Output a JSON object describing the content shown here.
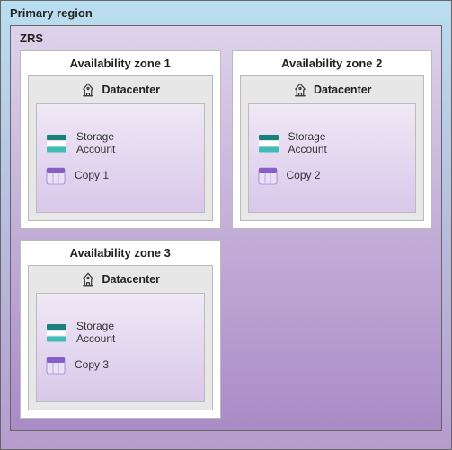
{
  "colors": {
    "region_bg_top": "#b9def0",
    "region_bg_bottom": "#b69ccd",
    "zrs_bg_top": "#ded2ea",
    "zrs_bg_bottom": "#a98bc6",
    "zone_bg": "#ffffff",
    "dc_bg": "#e7e7e7",
    "inner_bg_top": "#efe8f5",
    "inner_bg_bottom": "#d9c8ea",
    "border": "#bbbbbb",
    "text": "#222222",
    "storage_teal_dark": "#17817a",
    "storage_teal_light": "#3fbdb4",
    "storage_white": "#ffffff",
    "copy_purple": "#8661c5",
    "copy_light": "#e8e0f5",
    "dc_icon": "#333333"
  },
  "region": {
    "title": "Primary region"
  },
  "zrs": {
    "title": "ZRS"
  },
  "zones": [
    {
      "title": "Availability zone 1",
      "dc_label": "Datacenter",
      "storage_label": "Storage\nAccount",
      "copy_label": "Copy 1"
    },
    {
      "title": "Availability zone 2",
      "dc_label": "Datacenter",
      "storage_label": "Storage\nAccount",
      "copy_label": "Copy 2"
    },
    {
      "title": "Availability zone 3",
      "dc_label": "Datacenter",
      "storage_label": "Storage\nAccount",
      "copy_label": "Copy 3"
    }
  ]
}
